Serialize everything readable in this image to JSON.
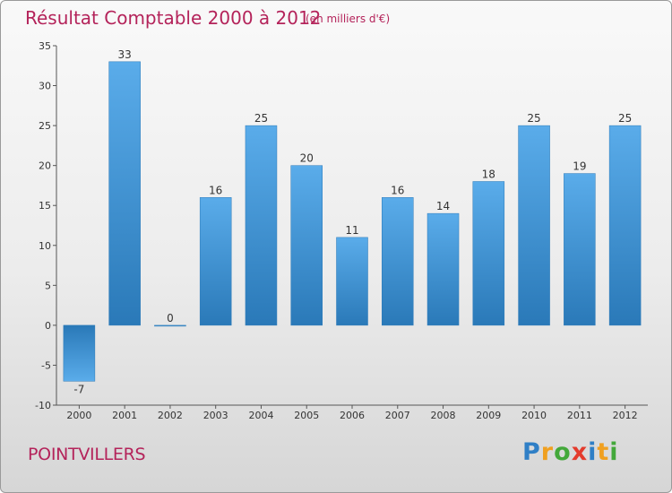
{
  "header": {
    "title": "Résultat Comptable 2000 à 2012",
    "subtitle": "(en milliers d'€)"
  },
  "footer": {
    "commune": "POINTVILLERS",
    "logo_letters": [
      "P",
      "r",
      "o",
      "x",
      "i",
      "t",
      "i"
    ],
    "logo_colors": [
      "#2f7fc6",
      "#f0a020",
      "#43a83a",
      "#e43b2c",
      "#2f7fc6",
      "#f0a020",
      "#43a83a"
    ]
  },
  "chart_data": {
    "type": "bar",
    "title": "Résultat Comptable 2000 à 2012",
    "subtitle": "(en milliers d'€)",
    "xlabel": "",
    "ylabel": "",
    "categories": [
      "2000",
      "2001",
      "2002",
      "2003",
      "2004",
      "2005",
      "2006",
      "2007",
      "2008",
      "2009",
      "2010",
      "2011",
      "2012"
    ],
    "values": [
      -7,
      33,
      0,
      16,
      25,
      20,
      11,
      16,
      14,
      18,
      25,
      19,
      25
    ],
    "ylim": [
      -10,
      35
    ],
    "yticks": [
      -10,
      -5,
      0,
      5,
      10,
      15,
      20,
      25,
      30,
      35
    ],
    "grid": false,
    "bar_color_light": "#5aacea",
    "bar_color_dark": "#2a79b8"
  }
}
